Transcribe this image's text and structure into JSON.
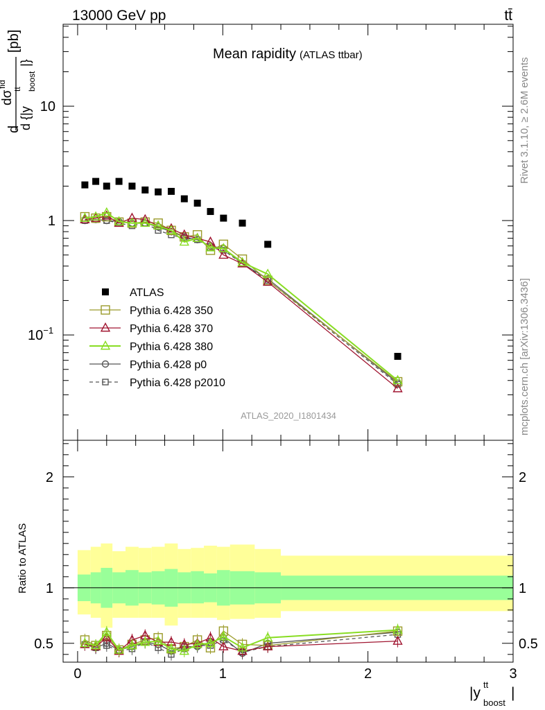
{
  "header": {
    "beam": "13000 GeV pp",
    "process": "tt̄",
    "side_top": "Rivet 3.1.10, ≥ 2.6M events",
    "side_bottom": "mcplots.cern.ch [arXiv:1306.3436]",
    "analysis_id": "ATLAS_2020_I1801434"
  },
  "chart_data": [
    {
      "type": "scatter",
      "title": "Mean rapidity",
      "subtitle": "(ATLAS ttbar)",
      "ylabel": "d dσ^fid / d {|y^tt_boost|} [pb]",
      "xlim": [
        -0.1,
        3.0
      ],
      "ylim": [
        0.012,
        52
      ],
      "y_scale": "log",
      "y_ticks": [
        "10^-1",
        "1",
        "10"
      ],
      "legend_position": "center-left",
      "colors": {
        "ATLAS": "#000000",
        "350": "#9b9b2a",
        "370": "#a01530",
        "380": "#88dd22",
        "p0": "#555555",
        "p2010": "#555555"
      },
      "x": [
        0.05,
        0.125,
        0.2,
        0.285,
        0.375,
        0.465,
        0.555,
        0.645,
        0.735,
        0.825,
        0.915,
        1.005,
        1.135,
        1.31,
        2.205
      ],
      "series": [
        {
          "name": "ATLAS",
          "values": [
            2.05,
            2.2,
            2.0,
            2.2,
            2.0,
            1.85,
            1.78,
            1.8,
            1.55,
            1.42,
            1.2,
            1.05,
            0.95,
            0.62,
            0.065
          ]
        },
        {
          "name": "Pythia 6.428 350",
          "values": [
            1.08,
            1.05,
            1.08,
            0.97,
            0.95,
            0.97,
            0.95,
            0.82,
            0.72,
            0.75,
            0.55,
            0.62,
            0.46,
            0.3,
            0.039
          ]
        },
        {
          "name": "Pythia 6.428 370",
          "values": [
            1.02,
            1.05,
            1.1,
            0.95,
            1.05,
            1.02,
            0.9,
            0.85,
            0.75,
            0.7,
            0.65,
            0.5,
            0.42,
            0.29,
            0.034
          ]
        },
        {
          "name": "Pythia 6.428 380",
          "values": [
            1.05,
            1.08,
            1.17,
            0.98,
            0.95,
            0.95,
            0.9,
            0.82,
            0.65,
            0.7,
            0.58,
            0.57,
            0.43,
            0.34,
            0.04
          ]
        },
        {
          "name": "Pythia 6.428 p0",
          "values": [
            1.0,
            1.02,
            1.0,
            0.98,
            0.95,
            0.95,
            0.88,
            0.8,
            0.72,
            0.68,
            0.6,
            0.57,
            0.42,
            0.31,
            0.038
          ]
        },
        {
          "name": "Pythia 6.428 p2010",
          "values": [
            1.0,
            1.02,
            1.0,
            0.95,
            0.9,
            0.95,
            0.82,
            0.75,
            0.7,
            0.68,
            0.58,
            0.55,
            0.42,
            0.3,
            0.037
          ]
        }
      ]
    },
    {
      "type": "line",
      "title": "",
      "xlabel": "|y^tt_boost|",
      "ylabel": "Ratio to ATLAS",
      "xlim": [
        -0.1,
        3.0
      ],
      "ylim": [
        0.33,
        2.33
      ],
      "x_ticks": [
        0,
        1,
        2,
        3
      ],
      "y_ticks": [
        0.5,
        1,
        2
      ],
      "bands": {
        "edges": [
          0.0,
          0.09,
          0.16,
          0.24,
          0.33,
          0.42,
          0.51,
          0.6,
          0.69,
          0.78,
          0.87,
          0.96,
          1.05,
          1.22,
          1.4,
          3.0
        ],
        "yellow_lo": [
          0.76,
          0.73,
          0.64,
          0.73,
          0.73,
          0.73,
          0.73,
          0.66,
          0.73,
          0.73,
          0.73,
          0.71,
          0.72,
          0.73,
          0.79
        ],
        "yellow_hi": [
          1.34,
          1.37,
          1.4,
          1.33,
          1.37,
          1.36,
          1.37,
          1.4,
          1.35,
          1.36,
          1.38,
          1.37,
          1.39,
          1.35,
          1.29
        ],
        "green_lo": [
          0.88,
          0.86,
          0.82,
          0.86,
          0.84,
          0.86,
          0.85,
          0.83,
          0.86,
          0.86,
          0.87,
          0.84,
          0.85,
          0.86,
          0.89
        ],
        "green_hi": [
          1.12,
          1.14,
          1.18,
          1.14,
          1.16,
          1.14,
          1.15,
          1.17,
          1.14,
          1.15,
          1.13,
          1.16,
          1.15,
          1.14,
          1.11
        ]
      },
      "x": [
        0.05,
        0.125,
        0.2,
        0.285,
        0.375,
        0.465,
        0.555,
        0.645,
        0.735,
        0.825,
        0.915,
        1.005,
        1.135,
        1.31,
        2.205
      ],
      "series": [
        {
          "name": "Pythia 6.428 350",
          "values": [
            0.53,
            0.48,
            0.57,
            0.44,
            0.49,
            0.53,
            0.55,
            0.45,
            0.47,
            0.53,
            0.46,
            0.61,
            0.49,
            0.48,
            0.61
          ]
        },
        {
          "name": "Pythia 6.428 370",
          "values": [
            0.49,
            0.47,
            0.55,
            0.43,
            0.53,
            0.57,
            0.51,
            0.51,
            0.49,
            0.5,
            0.55,
            0.47,
            0.43,
            0.47,
            0.52
          ]
        },
        {
          "name": "Pythia 6.428 380",
          "values": [
            0.5,
            0.48,
            0.6,
            0.44,
            0.48,
            0.51,
            0.52,
            0.45,
            0.43,
            0.49,
            0.5,
            0.56,
            0.46,
            0.55,
            0.62
          ]
        },
        {
          "name": "Pythia 6.428 p0",
          "values": [
            0.49,
            0.46,
            0.5,
            0.44,
            0.47,
            0.51,
            0.49,
            0.43,
            0.47,
            0.47,
            0.51,
            0.55,
            0.41,
            0.5,
            0.6
          ]
        },
        {
          "name": "Pythia 6.428 p2010",
          "values": [
            0.49,
            0.46,
            0.48,
            0.43,
            0.45,
            0.51,
            0.46,
            0.4,
            0.45,
            0.48,
            0.48,
            0.53,
            0.42,
            0.47,
            0.58
          ]
        }
      ]
    }
  ]
}
